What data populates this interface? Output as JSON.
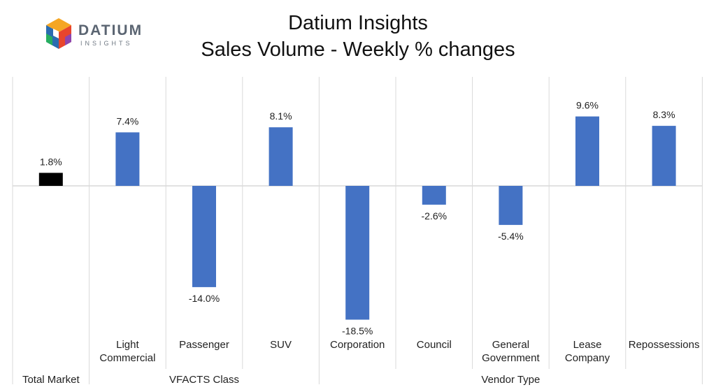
{
  "brand": {
    "name": "DATIUM",
    "sub": "INSIGHTS",
    "colors": [
      "#f5a623",
      "#e8452c",
      "#8e44ad",
      "#2b6cb0",
      "#27ae60"
    ]
  },
  "header": {
    "title": "Datium Insights",
    "subtitle": "Sales Volume - Weekly % changes"
  },
  "chart_data": {
    "type": "bar",
    "title": "Sales Volume - Weekly % changes",
    "xlabel": "",
    "ylabel": "",
    "value_suffix": "%",
    "ylim": [
      -20,
      12
    ],
    "grid": false,
    "categories": [
      [
        "Total Market"
      ],
      [
        "Light",
        "Commercial"
      ],
      [
        "Passenger"
      ],
      [
        "SUV"
      ],
      [
        "Corporation"
      ],
      [
        "Council"
      ],
      [
        "General",
        "Government"
      ],
      [
        "Lease",
        "Company"
      ],
      [
        "Repossessions"
      ]
    ],
    "values": [
      1.8,
      7.4,
      -14.0,
      8.1,
      -18.5,
      -2.6,
      -5.4,
      9.6,
      8.3
    ],
    "value_labels": [
      "1.8%",
      "7.4%",
      "-14.0%",
      "8.1%",
      "-18.5%",
      "-2.6%",
      "-5.4%",
      "9.6%",
      "8.3%"
    ],
    "bar_colors": [
      "#000000",
      "#4472c4",
      "#4472c4",
      "#4472c4",
      "#4472c4",
      "#4472c4",
      "#4472c4",
      "#4472c4",
      "#4472c4"
    ],
    "groups": [
      {
        "label": "Total Market",
        "start": 0,
        "end": 0
      },
      {
        "label": "VFACTS Class",
        "start": 1,
        "end": 3
      },
      {
        "label": "Vendor Type",
        "start": 4,
        "end": 8
      }
    ]
  }
}
